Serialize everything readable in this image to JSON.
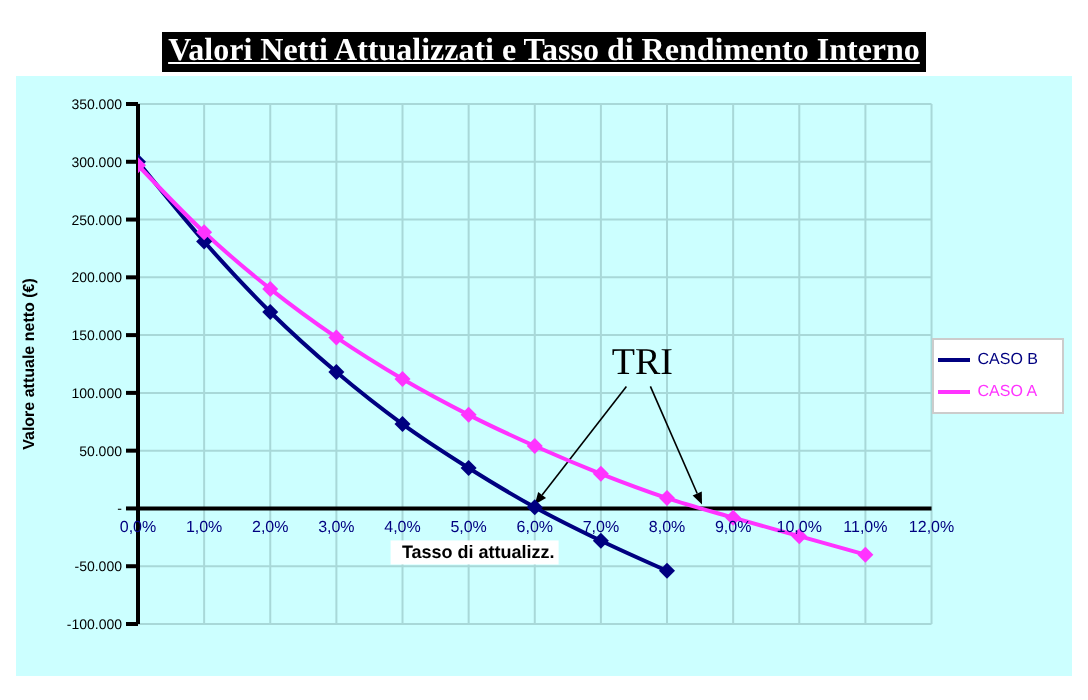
{
  "chart_data": {
    "type": "line",
    "title": "Valori Netti Attualizzati e Tasso di Rendimento Interno",
    "xlabel": "Tasso di attualizz.",
    "ylabel": "Valore attuale netto (€)",
    "annotations": [
      {
        "text": "TRI",
        "x": 6,
        "y": 0
      }
    ],
    "x": [
      0,
      1,
      2,
      3,
      4,
      5,
      6,
      7,
      8,
      9,
      10,
      11
    ],
    "series": [
      {
        "name": "CASO B",
        "color": "#000080",
        "values": [
          300000,
          231000,
          170000,
          118000,
          73000,
          35000,
          1000,
          -28000,
          -54000,
          null,
          null,
          null
        ]
      },
      {
        "name": "CASO A",
        "color": "#ff33ff",
        "values": [
          297000,
          239000,
          190000,
          148000,
          112000,
          81000,
          54000,
          30000,
          9000,
          -8000,
          -24000,
          -40000
        ]
      }
    ],
    "xlim": [
      0,
      12
    ],
    "xticks": [
      {
        "value": 0,
        "label": "0,0%"
      },
      {
        "value": 1,
        "label": "1,0%"
      },
      {
        "value": 2,
        "label": "2,0%"
      },
      {
        "value": 3,
        "label": "3,0%"
      },
      {
        "value": 4,
        "label": "4,0%"
      },
      {
        "value": 5,
        "label": "5,0%"
      },
      {
        "value": 6,
        "label": "6,0%"
      },
      {
        "value": 7,
        "label": "7,0%"
      },
      {
        "value": 8,
        "label": "8,0%"
      },
      {
        "value": 9,
        "label": "9,0%"
      },
      {
        "value": 10,
        "label": "10,0%"
      },
      {
        "value": 11,
        "label": "11,0%"
      },
      {
        "value": 12,
        "label": "12,0%"
      }
    ],
    "ylim": [
      -100000,
      350000
    ],
    "yticks": [
      {
        "value": -100000,
        "label": "-100.000"
      },
      {
        "value": -50000,
        "label": "-50.000"
      },
      {
        "value": 0,
        "label": "-"
      },
      {
        "value": 50000,
        "label": "50.000"
      },
      {
        "value": 100000,
        "label": "100.000"
      },
      {
        "value": 150000,
        "label": "150.000"
      },
      {
        "value": 200000,
        "label": "200.000"
      },
      {
        "value": 250000,
        "label": "250.000"
      },
      {
        "value": 300000,
        "label": "300.000"
      },
      {
        "value": 350000,
        "label": "350.000"
      }
    ],
    "grid": true,
    "legend": "right",
    "marker": "diamond",
    "line_style": "solid"
  }
}
